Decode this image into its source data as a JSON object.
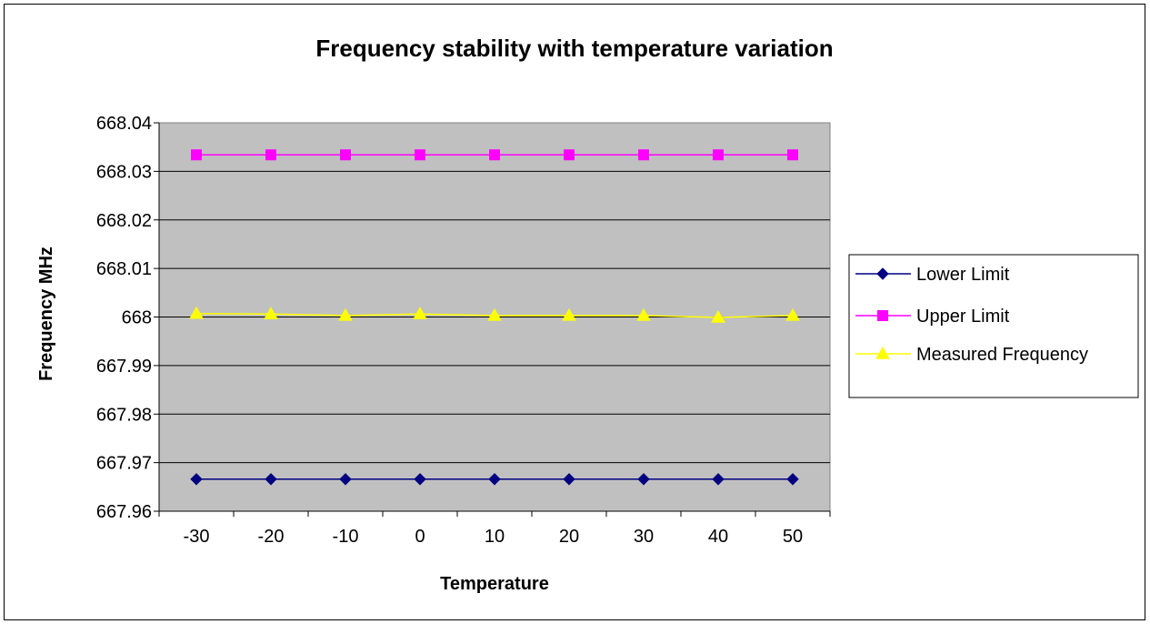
{
  "chart_data": {
    "type": "line",
    "title": "Frequency stability with temperature variation",
    "xlabel": "Temperature",
    "ylabel": "Frequency MHz",
    "categories": [
      "-30",
      "-20",
      "-10",
      "0",
      "10",
      "20",
      "30",
      "40",
      "50"
    ],
    "ylim": [
      667.96,
      668.04
    ],
    "yticks": [
      "667.96",
      "667.97",
      "667.98",
      "667.99",
      "668",
      "668.01",
      "668.02",
      "668.03",
      "668.04"
    ],
    "grid": true,
    "legend_position": "right",
    "plot_background": "#c0c0c0",
    "series": [
      {
        "name": "Lower Limit",
        "color": "#000080",
        "marker": "diamond",
        "values": [
          667.9666,
          667.9666,
          667.9666,
          667.9666,
          667.9666,
          667.9666,
          667.9666,
          667.9666,
          667.9666
        ]
      },
      {
        "name": "Upper Limit",
        "color": "#ff00ff",
        "marker": "square",
        "values": [
          668.0334,
          668.0334,
          668.0334,
          668.0334,
          668.0334,
          668.0334,
          668.0334,
          668.0334,
          668.0334
        ]
      },
      {
        "name": "Measured Frequency",
        "color": "#ffff00",
        "marker": "triangle",
        "values": [
          668.0007,
          668.0006,
          668.0003,
          668.0006,
          668.0003,
          668.0003,
          668.0003,
          667.9999,
          668.0003
        ]
      }
    ]
  }
}
